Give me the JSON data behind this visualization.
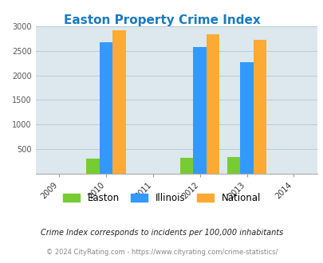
{
  "title": "Easton Property Crime Index",
  "years": [
    2009,
    2010,
    2011,
    2012,
    2013,
    2014
  ],
  "bar_years": [
    2010,
    2012,
    2013
  ],
  "easton": [
    300,
    315,
    340
  ],
  "illinois": [
    2670,
    2580,
    2270
  ],
  "national": [
    2920,
    2840,
    2730
  ],
  "easton_color": "#77cc33",
  "illinois_color": "#3399ff",
  "national_color": "#ffaa33",
  "bg_color": "#dce8ee",
  "ylim": [
    0,
    3000
  ],
  "yticks": [
    0,
    500,
    1000,
    1500,
    2000,
    2500,
    3000
  ],
  "title_color": "#1a7abf",
  "title_fontsize": 11,
  "bar_width": 0.28,
  "footnote1": "Crime Index corresponds to incidents per 100,000 inhabitants",
  "footnote2": "© 2024 CityRating.com - https://www.cityrating.com/crime-statistics/",
  "legend_labels": [
    "Easton",
    "Illinois",
    "National"
  ],
  "grid_color": "#b8ccd6"
}
